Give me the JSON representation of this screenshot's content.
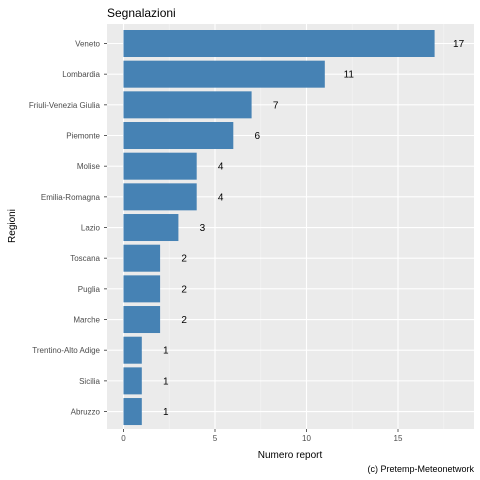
{
  "chart_data": {
    "type": "bar",
    "orientation": "horizontal",
    "title": "Segnalazioni",
    "xlabel": "Numero report",
    "ylabel": "Regioni",
    "caption": "(c) Pretemp-Meteonetwork",
    "categories": [
      "Veneto",
      "Lombardia",
      "Friuli-Venezia Giulia",
      "Piemonte",
      "Molise",
      "Emilia-Romagna",
      "Lazio",
      "Toscana",
      "Puglia",
      "Marche",
      "Trentino-Alto Adige",
      "Sicilia",
      "Abruzzo"
    ],
    "values": [
      17,
      11,
      7,
      6,
      4,
      4,
      3,
      2,
      2,
      2,
      1,
      1,
      1
    ],
    "xlim": [
      0,
      18.7
    ],
    "xticks": [
      0,
      5,
      10,
      15
    ],
    "grid": true,
    "colors": {
      "bar": "#4682b4",
      "panel": "#ebebeb",
      "grid_major": "#ffffff",
      "grid_minor": "#f5f5f5"
    }
  }
}
